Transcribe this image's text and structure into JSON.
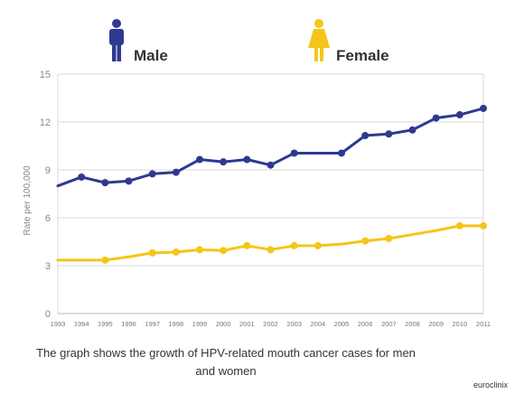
{
  "colors": {
    "male": "#2e3a8f",
    "female": "#f5c518",
    "grid": "#d9d9d9",
    "axis": "#bbbbbb"
  },
  "legend": [
    {
      "name": "Male",
      "icon": "male-figure-icon"
    },
    {
      "name": "Female",
      "icon": "female-figure-icon"
    }
  ],
  "caption": "The graph shows the growth of HPV-related mouth cancer cases for men and women",
  "source": "euroclinix",
  "chart_data": {
    "type": "line",
    "title": "",
    "xlabel": "",
    "ylabel": "Rate per 100,000",
    "ylim": [
      0,
      15
    ],
    "yticks": [
      0,
      3,
      6,
      9,
      12,
      15
    ],
    "grid": true,
    "legend_position": "top",
    "x": [
      1993,
      1994,
      1995,
      1996,
      1997,
      1998,
      1999,
      2000,
      2001,
      2002,
      2003,
      2004,
      2005,
      2006,
      2007,
      2008,
      2009,
      2010,
      2011
    ],
    "series": [
      {
        "name": "Male",
        "color": "#2e3a8f",
        "values": [
          8.0,
          8.55,
          8.2,
          8.3,
          8.75,
          8.85,
          9.65,
          9.5,
          9.65,
          9.3,
          10.05,
          10.05,
          10.05,
          11.15,
          11.25,
          11.5,
          12.25,
          12.45,
          12.85
        ],
        "markers": [
          false,
          true,
          true,
          true,
          true,
          true,
          true,
          true,
          true,
          true,
          true,
          false,
          true,
          true,
          true,
          true,
          true,
          true,
          true
        ]
      },
      {
        "name": "Female",
        "color": "#f5c518",
        "values": [
          3.35,
          3.35,
          3.35,
          3.55,
          3.8,
          3.85,
          4.0,
          3.95,
          4.25,
          4.0,
          4.25,
          4.25,
          4.35,
          4.55,
          4.7,
          4.95,
          5.2,
          5.5,
          5.5
        ],
        "markers": [
          false,
          false,
          true,
          false,
          true,
          true,
          true,
          true,
          true,
          true,
          true,
          true,
          false,
          true,
          true,
          false,
          false,
          true,
          true
        ]
      }
    ]
  }
}
